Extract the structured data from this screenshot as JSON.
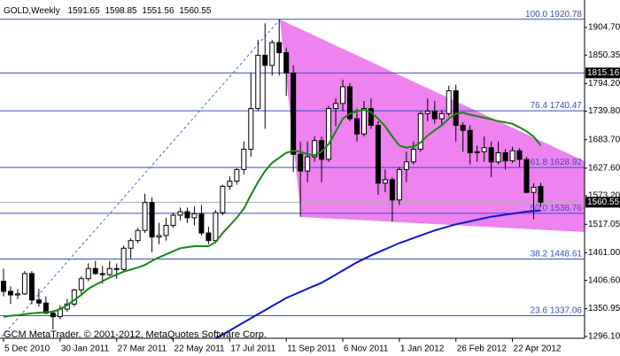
{
  "chart_data": {
    "type": "candlestick",
    "title": "GOLD,Weekly",
    "footer": "GCM MetaTrader, © 2001-2012, MetaQuotes Software Corp.",
    "categories": [
      "5 Dec 2010",
      null,
      null,
      null,
      null,
      null,
      null,
      null,
      "30 Jan 2011",
      null,
      null,
      null,
      null,
      null,
      null,
      null,
      "27 Mar 2011",
      null,
      null,
      null,
      null,
      null,
      null,
      null,
      "22 May 2011",
      null,
      null,
      null,
      null,
      null,
      null,
      null,
      "17 Jul 2011",
      null,
      null,
      null,
      null,
      null,
      null,
      null,
      "11 Sep 2011",
      null,
      null,
      null,
      null,
      null,
      null,
      null,
      "6 Nov 2011",
      null,
      null,
      null,
      null,
      null,
      null,
      null,
      "1 Jan 2012",
      null,
      null,
      null,
      null,
      null,
      null,
      null,
      "26 Feb 2012",
      null,
      null,
      null,
      null,
      null,
      null,
      null,
      "22 Apr 2012",
      null,
      null,
      null,
      null
    ],
    "open": [
      1405,
      1385,
      1378,
      1380,
      1420,
      1368,
      1362,
      1342,
      1335,
      1350,
      1360,
      1388,
      1410,
      1430,
      1420,
      1418,
      1430,
      1428,
      1470,
      1485,
      1505,
      1560,
      1492,
      1495,
      1515,
      1535,
      1542,
      1530,
      1538,
      1500,
      1485,
      1540,
      1592,
      1602,
      1625,
      1665,
      1745,
      1850,
      1830,
      1875,
      1855,
      1815,
      1655,
      1622,
      1650,
      1682,
      1645,
      1745,
      1755,
      1788,
      1725,
      1695,
      1745,
      1712,
      1598,
      1605,
      1565,
      1625,
      1640,
      1665,
      1735,
      1740,
      1725,
      1735,
      1780,
      1712,
      1702,
      1658,
      1660,
      1668,
      1640,
      1658,
      1642,
      1662,
      1645,
      1580,
      1591.65
    ],
    "high": [
      1430,
      1395,
      1390,
      1425,
      1425,
      1390,
      1375,
      1348,
      1358,
      1370,
      1390,
      1415,
      1440,
      1445,
      1435,
      1445,
      1440,
      1475,
      1490,
      1510,
      1577,
      1570,
      1520,
      1530,
      1540,
      1550,
      1550,
      1552,
      1555,
      1512,
      1545,
      1595,
      1612,
      1628,
      1680,
      1815,
      1880,
      1913,
      1880,
      1920.78,
      1865,
      1830,
      1680,
      1680,
      1690,
      1690,
      1750,
      1765,
      1802,
      1795,
      1745,
      1760,
      1765,
      1720,
      1625,
      1610,
      1630,
      1660,
      1680,
      1740,
      1765,
      1760,
      1742,
      1790,
      1792,
      1718,
      1712,
      1672,
      1690,
      1680,
      1680,
      1665,
      1670,
      1667,
      1650,
      1598,
      1598.85
    ],
    "low": [
      1375,
      1360,
      1370,
      1378,
      1360,
      1355,
      1340,
      1310,
      1330,
      1345,
      1355,
      1380,
      1405,
      1418,
      1400,
      1415,
      1410,
      1425,
      1450,
      1480,
      1500,
      1462,
      1478,
      1485,
      1510,
      1525,
      1520,
      1515,
      1495,
      1478,
      1480,
      1535,
      1585,
      1595,
      1615,
      1650,
      1740,
      1705,
      1810,
      1810,
      1770,
      1620,
      1532,
      1600,
      1640,
      1600,
      1640,
      1710,
      1740,
      1720,
      1680,
      1690,
      1705,
      1575,
      1580,
      1522,
      1555,
      1600,
      1635,
      1660,
      1720,
      1715,
      1710,
      1730,
      1680,
      1660,
      1635,
      1640,
      1640,
      1610,
      1635,
      1625,
      1638,
      1630,
      1578,
      1527,
      1551.56
    ],
    "close": [
      1385,
      1378,
      1380,
      1420,
      1368,
      1362,
      1342,
      1335,
      1350,
      1360,
      1388,
      1410,
      1430,
      1420,
      1418,
      1430,
      1428,
      1470,
      1485,
      1505,
      1560,
      1492,
      1495,
      1515,
      1535,
      1542,
      1530,
      1538,
      1500,
      1485,
      1540,
      1592,
      1602,
      1625,
      1665,
      1745,
      1850,
      1830,
      1875,
      1855,
      1815,
      1655,
      1622,
      1650,
      1682,
      1645,
      1745,
      1755,
      1788,
      1725,
      1695,
      1745,
      1712,
      1598,
      1605,
      1565,
      1625,
      1640,
      1665,
      1735,
      1740,
      1725,
      1735,
      1780,
      1712,
      1702,
      1658,
      1660,
      1668,
      1640,
      1658,
      1642,
      1662,
      1645,
      1580,
      1590,
      1560.55
    ],
    "up_color": "#ffffff",
    "down_color": "#000000",
    "moving_averages": [
      {
        "color": "#118a11",
        "values": [
          1335,
          1337,
          1338,
          1340,
          1342,
          1343,
          1344,
          1345,
          1350,
          1358,
          1368,
          1378,
          1390,
          1398,
          1405,
          1412,
          1418,
          1424,
          1428,
          1432,
          1437,
          1445,
          1452,
          1458,
          1464,
          1470,
          1472,
          1474,
          1474,
          1474,
          1482,
          1500,
          1515,
          1530,
          1548,
          1575,
          1600,
          1622,
          1638,
          1648,
          1658,
          1662,
          1660,
          1655,
          1653,
          1660,
          1675,
          1700,
          1725,
          1735,
          1740,
          1742,
          1738,
          1725,
          1710,
          1690,
          1672,
          1668,
          1670,
          1678,
          1692,
          1702,
          1712,
          1725,
          1735,
          1737,
          1733,
          1730,
          1727,
          1724,
          1720,
          1718,
          1715,
          1708,
          1700,
          1690,
          1672
        ]
      },
      {
        "color": "#0a18d0",
        "values": [
          null,
          null,
          null,
          null,
          null,
          null,
          null,
          null,
          null,
          null,
          null,
          null,
          null,
          null,
          null,
          null,
          null,
          null,
          null,
          null,
          null,
          null,
          null,
          null,
          null,
          null,
          null,
          null,
          null,
          null,
          1293,
          1300,
          1308,
          1316,
          1324,
          1332,
          1340,
          1348,
          1356,
          1364,
          1372,
          1378,
          1384,
          1390,
          1396,
          1402,
          1410,
          1418,
          1426,
          1434,
          1442,
          1449,
          1456,
          1462,
          1468,
          1474,
          1480,
          1485,
          1490,
          1495,
          1500,
          1505,
          1509,
          1513,
          1517,
          1520,
          1523,
          1526,
          1529,
          1532,
          1534,
          1536,
          1538,
          1540,
          1542,
          1543,
          1544
        ]
      }
    ],
    "ylim": [
      1292.6,
      1955.3
    ],
    "yticks": [
      {
        "value": 1904.7,
        "label": "1904.70"
      },
      1850.35,
      {
        "value": 1794.2,
        "label": "1794.20"
      },
      {
        "value": 1739.8,
        "label": "1739.80"
      },
      {
        "value": 1683.7,
        "label": "1683.70"
      },
      {
        "value": 1627.6,
        "label": "1627.60"
      },
      {
        "value": 1573.2,
        "label": "1573.20"
      },
      1517.05,
      {
        "value": 1461,
        "label": "1461.00"
      },
      {
        "value": 1406.6,
        "label": "1406.60"
      },
      1350.95,
      {
        "value": 1296.1,
        "label": "1296.10"
      }
    ],
    "fib_levels": [
      {
        "level": "100.0",
        "price": 1920.78
      },
      {
        "level": "76.4",
        "price": 1740.47
      },
      {
        "level": "61.8",
        "price": 1628.92
      },
      {
        "level": "50.0",
        "price": 1538.76
      },
      {
        "level": "38.2",
        "price": 1448.61
      },
      {
        "level": "23.6",
        "price": 1337.06
      }
    ],
    "level_line": 1815.16
  }
}
